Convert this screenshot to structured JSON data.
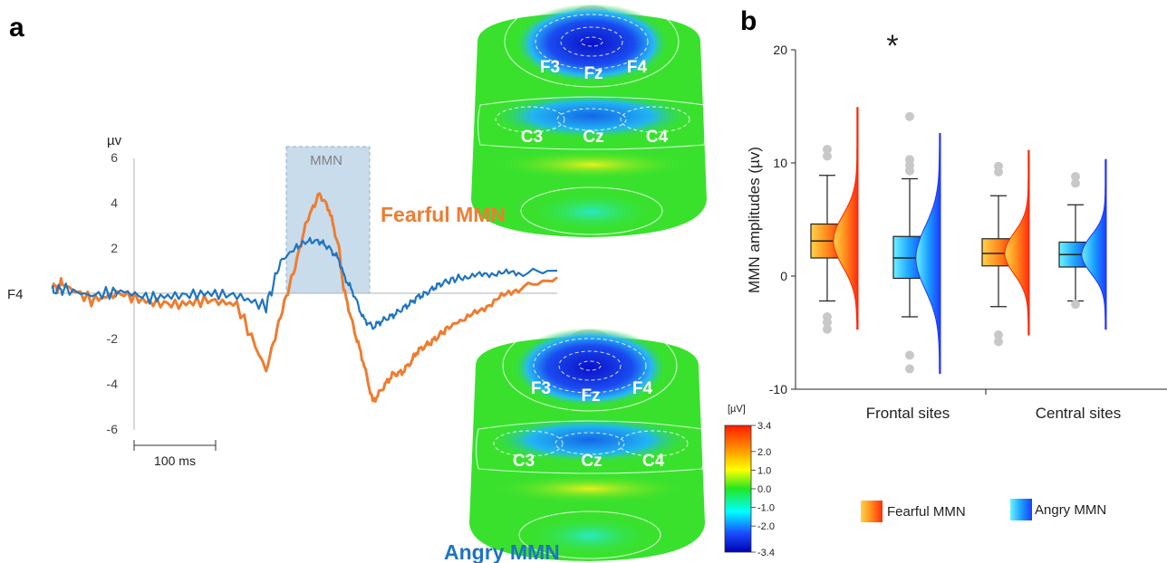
{
  "panels": {
    "a": {
      "label": "a"
    },
    "b": {
      "label": "b"
    }
  },
  "colors": {
    "fearful": "#ed7d31",
    "angry": "#1f74c0",
    "mmn_window": "#c9dcec",
    "axis": "#9a9a9a",
    "scalp_base": "#39e12d"
  },
  "erp": {
    "channel": "F4",
    "unit": "µv",
    "yticks": [
      "6",
      "4",
      "2",
      "0",
      "-2",
      "-4",
      "-6"
    ],
    "window_label": "MMN",
    "scalebar_label": "100 ms"
  },
  "topomaps": {
    "fearful": {
      "title": "Fearful MMN",
      "frontal": [
        "F3",
        "Fz",
        "F4"
      ],
      "central": [
        "C3",
        "Cz",
        "C4"
      ]
    },
    "angry": {
      "title": "Angry MMN",
      "frontal": [
        "F3",
        "Fz",
        "F4"
      ],
      "central": [
        "C3",
        "Cz",
        "C4"
      ]
    }
  },
  "colorbar": {
    "unit": "[µV]",
    "ticks": [
      "3.4",
      "2.0",
      "1.0",
      "0.0",
      "-1.0",
      "-2.0",
      "-3.4"
    ],
    "range": [
      -3.4,
      3.4
    ]
  },
  "chart_data": [
    {
      "type": "line",
      "xlabel": "",
      "ylabel": "µv",
      "ylim": [
        -6,
        6
      ],
      "x_scale": "100 ms",
      "series": [
        {
          "name": "Fearful MMN",
          "color": "#ed7d31",
          "x": [
            0,
            10,
            40,
            70,
            100,
            130,
            160,
            190,
            220,
            235,
            250,
            262,
            275,
            285,
            295,
            300,
            310,
            320,
            330,
            340,
            350,
            360,
            370,
            375,
            385,
            395,
            405,
            420,
            440,
            460,
            480,
            520
          ],
          "values": [
            0.2,
            0.4,
            -0.3,
            0.0,
            -0.4,
            -0.5,
            -0.3,
            -0.5,
            -3.4,
            -1.0,
            1.2,
            3.2,
            4.4,
            3.7,
            2.0,
            0.2,
            -1.5,
            -3.0,
            -4.8,
            -4.2,
            -3.6,
            -3.5,
            -3.0,
            -2.6,
            -2.3,
            -2.0,
            -1.6,
            -1.2,
            -0.8,
            -0.2,
            0.2,
            0.7
          ]
        },
        {
          "name": "Angry MMN",
          "color": "#1f74c0",
          "x": [
            0,
            10,
            40,
            70,
            100,
            130,
            160,
            190,
            220,
            235,
            250,
            262,
            275,
            285,
            295,
            300,
            310,
            320,
            330,
            340,
            350,
            360,
            370,
            375,
            385,
            395,
            405,
            420,
            440,
            460,
            480,
            520
          ],
          "values": [
            0.1,
            0.2,
            -0.1,
            0.1,
            -0.2,
            -0.1,
            0.0,
            -0.1,
            -0.6,
            1.4,
            2.0,
            2.3,
            2.3,
            2.0,
            1.5,
            0.8,
            0.0,
            -1.1,
            -1.5,
            -1.2,
            -1.0,
            -0.7,
            -0.4,
            -0.2,
            0.0,
            0.3,
            0.5,
            0.7,
            0.8,
            0.9,
            0.9,
            1.0
          ]
        }
      ]
    },
    {
      "type": "box",
      "title": "",
      "xlabel": "",
      "ylabel": "MMN amplitudes (µv)",
      "ylim": [
        -10,
        20
      ],
      "yticks": [
        "20",
        "10",
        "0",
        "-10"
      ],
      "categories": [
        "Frontal sites",
        "Central sites"
      ],
      "significance_marker": "*",
      "legend": [
        "Fearful MMN",
        "Angry MMN"
      ],
      "series": [
        {
          "name": "Fearful MMN",
          "frontal": {
            "q1": 1.6,
            "median": 3.1,
            "q3": 4.6,
            "whisker_low": -2.2,
            "whisker_high": 8.9,
            "outliers": [
              11.2,
              10.6,
              -3.6,
              -4.1,
              -4.7
            ]
          },
          "central": {
            "q1": 0.9,
            "median": 2.0,
            "q3": 3.3,
            "whisker_low": -2.7,
            "whisker_high": 7.1,
            "outliers": [
              9.7,
              9.2,
              -5.2,
              -5.8
            ]
          }
        },
        {
          "name": "Angry MMN",
          "frontal": {
            "q1": -0.2,
            "median": 1.6,
            "q3": 3.5,
            "whisker_low": -3.6,
            "whisker_high": 8.6,
            "outliers": [
              14.1,
              10.3,
              9.8,
              9.3,
              -7.0,
              -8.2
            ]
          },
          "central": {
            "q1": 0.8,
            "median": 1.9,
            "q3": 3.0,
            "whisker_low": -2.2,
            "whisker_high": 6.3,
            "outliers": [
              8.8,
              8.2,
              -2.5
            ]
          }
        }
      ]
    }
  ]
}
